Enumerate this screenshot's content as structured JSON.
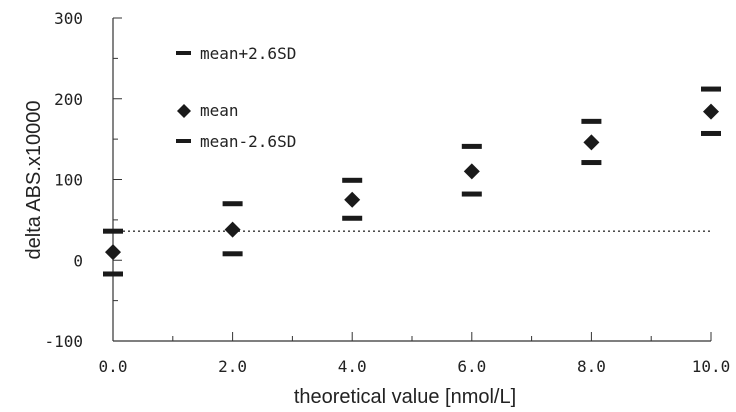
{
  "chart_data": {
    "type": "scatter",
    "xlabel": "theoretical value [nmol/L]",
    "ylabel": "delta ABS.x10000",
    "xlim": [
      0,
      10
    ],
    "ylim": [
      -100,
      300
    ],
    "x_ticks": [
      "0.0",
      "2.0",
      "4.0",
      "6.0",
      "8.0",
      "10.0"
    ],
    "y_ticks": [
      "300",
      "200",
      "100",
      "0",
      "-100"
    ],
    "grid": false,
    "legend_placement": "upper-left",
    "series": [
      {
        "name": "mean+2.6SD",
        "marker": "dash",
        "x": [
          0,
          2,
          4,
          6,
          8,
          10
        ],
        "y": [
          36,
          70,
          99,
          141,
          172,
          212
        ]
      },
      {
        "name": "mean",
        "marker": "diamond",
        "x": [
          0,
          2,
          4,
          6,
          8,
          10
        ],
        "y": [
          10,
          38,
          75,
          110,
          146,
          184
        ]
      },
      {
        "name": "mean-2.6SD",
        "marker": "dash",
        "x": [
          0,
          2,
          4,
          6,
          8,
          10
        ],
        "y": [
          -17,
          8,
          52,
          82,
          121,
          157
        ]
      }
    ],
    "reference_line": {
      "style": "dotted",
      "y": 36
    },
    "colors": {
      "marker": "#1a1a1a",
      "axis": "#333333"
    }
  }
}
